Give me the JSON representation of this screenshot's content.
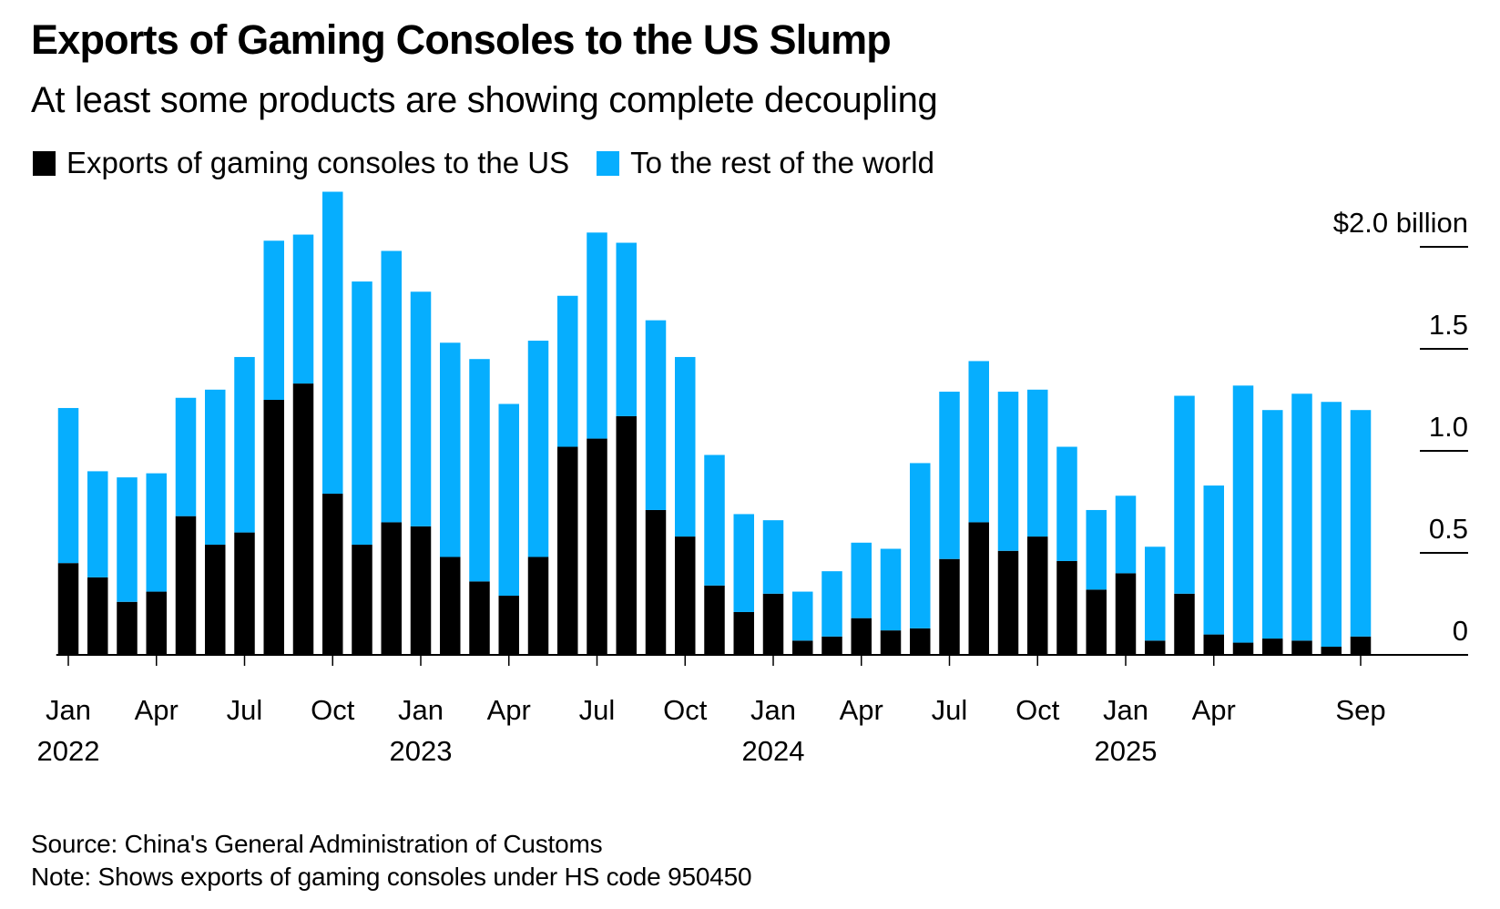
{
  "header": {
    "title": "Exports of Gaming Consoles to the US Slump",
    "subtitle": "At least some products are showing complete decoupling"
  },
  "legend": [
    {
      "label": "Exports of gaming consoles to the US",
      "color": "#000000"
    },
    {
      "label": "To the rest of the world",
      "color": "#06aefe"
    }
  ],
  "footer": {
    "source": "Source: China's General Administration of Customs",
    "note": "Note: Shows exports of gaming consoles under HS code 950450"
  },
  "chart_data": {
    "type": "bar",
    "stacked": true,
    "title": "Exports of Gaming Consoles to the US Slump",
    "subtitle": "At least some products are showing complete decoupling",
    "xlabel": "",
    "ylabel": "$ billion",
    "ylim": [
      0,
      2.0
    ],
    "y_ticks": [
      {
        "value": 0,
        "label": "0"
      },
      {
        "value": 0.5,
        "label": "0.5"
      },
      {
        "value": 1.0,
        "label": "1.0"
      },
      {
        "value": 1.5,
        "label": "1.5"
      },
      {
        "value": 2.0,
        "label": "$2.0 billion"
      }
    ],
    "y_axis_side": "right",
    "grid": false,
    "legend_position": "top-left",
    "x_ticks": [
      {
        "index": 0,
        "month": "Jan",
        "year": "2022"
      },
      {
        "index": 3,
        "month": "Apr",
        "year": ""
      },
      {
        "index": 6,
        "month": "Jul",
        "year": ""
      },
      {
        "index": 9,
        "month": "Oct",
        "year": ""
      },
      {
        "index": 12,
        "month": "Jan",
        "year": "2023"
      },
      {
        "index": 15,
        "month": "Apr",
        "year": ""
      },
      {
        "index": 18,
        "month": "Jul",
        "year": ""
      },
      {
        "index": 21,
        "month": "Oct",
        "year": ""
      },
      {
        "index": 24,
        "month": "Jan",
        "year": "2024"
      },
      {
        "index": 27,
        "month": "Apr",
        "year": ""
      },
      {
        "index": 30,
        "month": "Jul",
        "year": ""
      },
      {
        "index": 33,
        "month": "Oct",
        "year": ""
      },
      {
        "index": 36,
        "month": "Jan",
        "year": "2025"
      },
      {
        "index": 39,
        "month": "Apr",
        "year": ""
      },
      {
        "index": 44,
        "month": "Sep",
        "year": ""
      }
    ],
    "categories": [
      "2022-01",
      "2022-02",
      "2022-03",
      "2022-04",
      "2022-05",
      "2022-06",
      "2022-07",
      "2022-08",
      "2022-09",
      "2022-10",
      "2022-11",
      "2022-12",
      "2023-01",
      "2023-02",
      "2023-03",
      "2023-04",
      "2023-05",
      "2023-06",
      "2023-07",
      "2023-08",
      "2023-09",
      "2023-10",
      "2023-11",
      "2023-12",
      "2024-01",
      "2024-02",
      "2024-03",
      "2024-04",
      "2024-05",
      "2024-06",
      "2024-07",
      "2024-08",
      "2024-09",
      "2024-10",
      "2024-11",
      "2024-12",
      "2025-01",
      "2025-02",
      "2025-03",
      "2025-04",
      "2025-05",
      "2025-06",
      "2025-07",
      "2025-08",
      "2025-09"
    ],
    "series": [
      {
        "name": "Exports of gaming consoles to the US",
        "color": "#000000",
        "values": [
          0.45,
          0.38,
          0.26,
          0.31,
          0.68,
          0.54,
          0.6,
          1.25,
          1.33,
          0.79,
          0.54,
          0.65,
          0.63,
          0.48,
          0.36,
          0.29,
          0.48,
          1.02,
          1.06,
          1.17,
          0.71,
          0.58,
          0.34,
          0.21,
          0.3,
          0.07,
          0.09,
          0.18,
          0.12,
          0.13,
          0.47,
          0.65,
          0.51,
          0.58,
          0.46,
          0.32,
          0.4,
          0.07,
          0.3,
          0.1,
          0.06,
          0.08,
          0.07,
          0.04,
          0.09
        ]
      },
      {
        "name": "To the rest of the world",
        "color": "#06aefe",
        "values": [
          0.76,
          0.52,
          0.61,
          0.58,
          0.58,
          0.76,
          0.86,
          0.78,
          0.73,
          1.48,
          1.29,
          1.33,
          1.15,
          1.05,
          1.09,
          0.94,
          1.06,
          0.74,
          1.01,
          0.85,
          0.93,
          0.88,
          0.64,
          0.48,
          0.36,
          0.24,
          0.32,
          0.37,
          0.4,
          0.81,
          0.82,
          0.79,
          0.78,
          0.72,
          0.56,
          0.39,
          0.38,
          0.46,
          0.97,
          0.73,
          1.26,
          1.12,
          1.21,
          1.2,
          1.11
        ]
      }
    ],
    "source": "Source: China's General Administration of Customs",
    "note": "Note: Shows exports of gaming consoles under HS code 950450"
  }
}
